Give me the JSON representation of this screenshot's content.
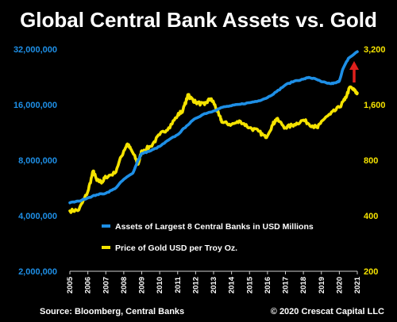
{
  "chart_data": {
    "type": "line",
    "title": "Global Central Bank Assets vs. Gold",
    "x_range": [
      2005,
      2021
    ],
    "x_ticks": [
      "2005",
      "2006",
      "2007",
      "2008",
      "2009",
      "2010",
      "2011",
      "2012",
      "2013",
      "2014",
      "2015",
      "2016",
      "2017",
      "2018",
      "2019",
      "2020",
      "2021"
    ],
    "y_left": {
      "scale": "log",
      "range": [
        2000000,
        32000000
      ],
      "ticks": [
        {
          "value": 32000000,
          "label": "32,000,000"
        },
        {
          "value": 16000000,
          "label": "16,000,000"
        },
        {
          "value": 8000000,
          "label": "8,000,000"
        },
        {
          "value": 4000000,
          "label": "4,000,000"
        },
        {
          "value": 2000000,
          "label": "2,000,000"
        }
      ]
    },
    "y_right": {
      "scale": "log",
      "range": [
        200,
        3200
      ],
      "ticks": [
        {
          "value": 3200,
          "label": "3,200"
        },
        {
          "value": 1600,
          "label": "1,600"
        },
        {
          "value": 800,
          "label": "800"
        },
        {
          "value": 400,
          "label": "400"
        },
        {
          "value": 200,
          "label": "200"
        }
      ]
    },
    "series": [
      {
        "name": "Assets of Largest 8 Central Banks in USD Millions",
        "color": "#1e8fe6",
        "axis": "left",
        "x": [
          2005.0,
          2005.5,
          2006.0,
          2006.5,
          2007.0,
          2007.5,
          2008.0,
          2008.5,
          2008.8,
          2009.0,
          2009.5,
          2010.0,
          2010.5,
          2011.0,
          2011.5,
          2012.0,
          2012.5,
          2013.0,
          2013.5,
          2014.0,
          2014.5,
          2015.0,
          2015.5,
          2016.0,
          2016.5,
          2017.0,
          2017.5,
          2018.0,
          2018.3,
          2018.7,
          2019.0,
          2019.5,
          2019.8,
          2020.0,
          2020.2,
          2020.5,
          2021.0
        ],
        "values": [
          4700000,
          4800000,
          5000000,
          5200000,
          5300000,
          5600000,
          6300000,
          6800000,
          8000000,
          8700000,
          9000000,
          9500000,
          10300000,
          11000000,
          12300000,
          13500000,
          14300000,
          14800000,
          15500000,
          15800000,
          16100000,
          16400000,
          16800000,
          17500000,
          18800000,
          20500000,
          21500000,
          22000000,
          22500000,
          22000000,
          21300000,
          20800000,
          21000000,
          21500000,
          25000000,
          28500000,
          31000000
        ]
      },
      {
        "name": "Price of Gold USD per Troy Oz.",
        "color": "#f5e300",
        "axis": "right",
        "x": [
          2005.0,
          2005.5,
          2006.0,
          2006.3,
          2006.5,
          2006.8,
          2007.0,
          2007.5,
          2008.0,
          2008.2,
          2008.5,
          2008.8,
          2009.0,
          2009.5,
          2010.0,
          2010.5,
          2011.0,
          2011.3,
          2011.6,
          2011.7,
          2012.0,
          2012.5,
          2012.8,
          2013.0,
          2013.3,
          2013.5,
          2014.0,
          2014.5,
          2015.0,
          2015.5,
          2015.9,
          2016.3,
          2016.5,
          2017.0,
          2017.5,
          2018.0,
          2018.5,
          2018.8,
          2019.0,
          2019.5,
          2020.0,
          2020.3,
          2020.6,
          2020.9,
          2021.0
        ],
        "values": [
          425,
          430,
          540,
          700,
          620,
          610,
          650,
          680,
          900,
          980,
          880,
          760,
          900,
          950,
          1100,
          1200,
          1400,
          1500,
          1820,
          1750,
          1650,
          1600,
          1720,
          1650,
          1400,
          1280,
          1250,
          1300,
          1200,
          1150,
          1060,
          1250,
          1340,
          1200,
          1250,
          1320,
          1230,
          1200,
          1300,
          1420,
          1550,
          1700,
          2000,
          1880,
          1850
        ]
      }
    ],
    "annotation": "red upward arrow at end of series",
    "grid": false,
    "legend_position": "lower-right, inside plot"
  },
  "footer": {
    "source": "Source: Bloomberg, Central Banks",
    "copyright": "© 2020 Crescat Capital LLC"
  },
  "colors": {
    "background": "#000000",
    "assets_line": "#1e8fe6",
    "gold_line": "#f5e300",
    "arrow": "#e0201c"
  }
}
